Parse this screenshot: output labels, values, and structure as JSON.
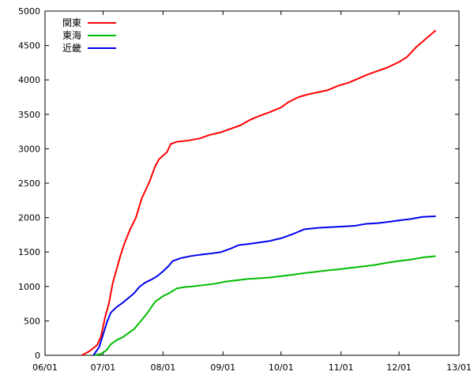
{
  "chart_data": {
    "type": "line",
    "title": "",
    "xlabel": "",
    "ylabel": "",
    "grid": false,
    "legend_position": "top-left",
    "x_tick_labels": [
      "06/01",
      "07/01",
      "08/01",
      "09/01",
      "10/01",
      "11/01",
      "12/01",
      "13/01"
    ],
    "y_ticks": [
      0,
      500,
      1000,
      1500,
      2000,
      2500,
      3000,
      3500,
      4000,
      4500,
      5000
    ],
    "ylim": [
      0,
      5000
    ],
    "series": [
      {
        "name": "関東",
        "color": "#ff0000",
        "points": [
          [
            "06/20",
            0
          ],
          [
            "06/24",
            60
          ],
          [
            "06/28",
            150
          ],
          [
            "06/30",
            280
          ],
          [
            "07/02",
            550
          ],
          [
            "07/04",
            750
          ],
          [
            "07/06",
            1050
          ],
          [
            "07/08",
            1250
          ],
          [
            "07/10",
            1450
          ],
          [
            "07/12",
            1620
          ],
          [
            "07/15",
            1830
          ],
          [
            "07/18",
            2000
          ],
          [
            "07/21",
            2280
          ],
          [
            "07/25",
            2520
          ],
          [
            "07/28",
            2750
          ],
          [
            "07/30",
            2850
          ],
          [
            "08/03",
            2950
          ],
          [
            "08/05",
            3070
          ],
          [
            "08/08",
            3100
          ],
          [
            "08/14",
            3120
          ],
          [
            "08/20",
            3150
          ],
          [
            "08/25",
            3200
          ],
          [
            "08/31",
            3240
          ],
          [
            "09/05",
            3290
          ],
          [
            "09/10",
            3340
          ],
          [
            "09/15",
            3420
          ],
          [
            "09/20",
            3480
          ],
          [
            "09/25",
            3530
          ],
          [
            "10/01",
            3600
          ],
          [
            "10/05",
            3680
          ],
          [
            "10/10",
            3750
          ],
          [
            "10/15",
            3790
          ],
          [
            "10/20",
            3820
          ],
          [
            "10/25",
            3850
          ],
          [
            "10/31",
            3920
          ],
          [
            "11/05",
            3960
          ],
          [
            "11/10",
            4020
          ],
          [
            "11/15",
            4080
          ],
          [
            "11/20",
            4130
          ],
          [
            "11/25",
            4180
          ],
          [
            "12/01",
            4260
          ],
          [
            "12/05",
            4330
          ],
          [
            "12/10",
            4480
          ],
          [
            "12/15",
            4600
          ],
          [
            "12/20",
            4720
          ]
        ]
      },
      {
        "name": "東海",
        "color": "#00bb00",
        "points": [
          [
            "06/26",
            0
          ],
          [
            "06/30",
            20
          ],
          [
            "07/03",
            80
          ],
          [
            "07/05",
            160
          ],
          [
            "07/08",
            220
          ],
          [
            "07/11",
            260
          ],
          [
            "07/14",
            320
          ],
          [
            "07/17",
            380
          ],
          [
            "07/20",
            480
          ],
          [
            "07/24",
            620
          ],
          [
            "07/28",
            780
          ],
          [
            "08/01",
            860
          ],
          [
            "08/04",
            900
          ],
          [
            "08/08",
            970
          ],
          [
            "08/12",
            990
          ],
          [
            "08/16",
            1000
          ],
          [
            "08/22",
            1020
          ],
          [
            "08/28",
            1040
          ],
          [
            "09/02",
            1070
          ],
          [
            "09/08",
            1090
          ],
          [
            "09/14",
            1110
          ],
          [
            "09/20",
            1120
          ],
          [
            "09/25",
            1130
          ],
          [
            "10/01",
            1150
          ],
          [
            "10/07",
            1170
          ],
          [
            "10/12",
            1190
          ],
          [
            "10/18",
            1210
          ],
          [
            "10/24",
            1230
          ],
          [
            "10/31",
            1250
          ],
          [
            "11/06",
            1270
          ],
          [
            "11/12",
            1290
          ],
          [
            "11/18",
            1310
          ],
          [
            "11/24",
            1340
          ],
          [
            "12/01",
            1370
          ],
          [
            "12/07",
            1390
          ],
          [
            "12/13",
            1420
          ],
          [
            "12/20",
            1440
          ]
        ]
      },
      {
        "name": "近畿",
        "color": "#0000ee",
        "points": [
          [
            "06/26",
            0
          ],
          [
            "06/29",
            120
          ],
          [
            "07/01",
            300
          ],
          [
            "07/03",
            480
          ],
          [
            "07/05",
            620
          ],
          [
            "07/08",
            700
          ],
          [
            "07/11",
            760
          ],
          [
            "07/14",
            830
          ],
          [
            "07/17",
            900
          ],
          [
            "07/20",
            1000
          ],
          [
            "07/23",
            1060
          ],
          [
            "07/26",
            1100
          ],
          [
            "07/29",
            1150
          ],
          [
            "08/01",
            1220
          ],
          [
            "08/04",
            1300
          ],
          [
            "08/06",
            1370
          ],
          [
            "08/10",
            1410
          ],
          [
            "08/15",
            1440
          ],
          [
            "08/20",
            1460
          ],
          [
            "08/26",
            1480
          ],
          [
            "08/31",
            1500
          ],
          [
            "09/05",
            1550
          ],
          [
            "09/09",
            1600
          ],
          [
            "09/15",
            1620
          ],
          [
            "09/20",
            1640
          ],
          [
            "09/25",
            1660
          ],
          [
            "10/01",
            1700
          ],
          [
            "10/07",
            1760
          ],
          [
            "10/13",
            1830
          ],
          [
            "10/20",
            1850
          ],
          [
            "10/26",
            1860
          ],
          [
            "11/01",
            1870
          ],
          [
            "11/08",
            1880
          ],
          [
            "11/14",
            1910
          ],
          [
            "11/20",
            1920
          ],
          [
            "11/26",
            1940
          ],
          [
            "12/01",
            1960
          ],
          [
            "12/07",
            1980
          ],
          [
            "12/13",
            2010
          ],
          [
            "12/20",
            2020
          ]
        ]
      }
    ]
  }
}
